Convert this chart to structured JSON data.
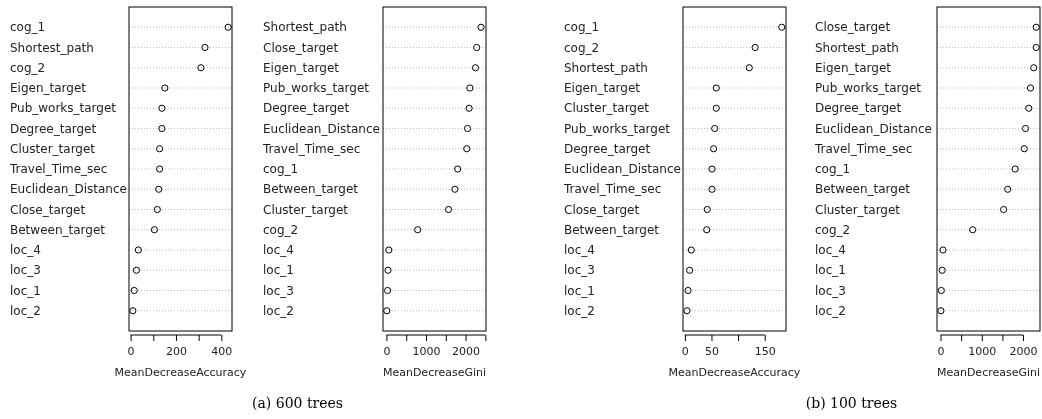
{
  "chart_data": [
    {
      "type": "scatter",
      "orientation": "horizontal",
      "marker": "circle",
      "grid": "y",
      "xlabel": "MeanDecreaseAccuracy",
      "annotations": [
        "(a) 600 trees"
      ],
      "categories": [
        "cog_1",
        "Shortest_path",
        "cog_2",
        "Eigen_target",
        "Pub_works_target",
        "Degree_target",
        "Cluster_target",
        "Travel_Time_sec",
        "Euclidean_Distance",
        "Close_target",
        "Between_target",
        "loc_4",
        "loc_3",
        "loc_1",
        "loc_2"
      ],
      "values": [
        430,
        328,
        310,
        151,
        138,
        138,
        128,
        128,
        124,
        118,
        105,
        34,
        26,
        16,
        10
      ],
      "color": "#000000",
      "xlim": [
        -7,
        447
      ],
      "xticks": [
        0,
        {
          "value": 100,
          "label": null
        },
        200,
        {
          "value": 300,
          "label": null
        },
        400
      ]
    },
    {
      "type": "scatter",
      "orientation": "horizontal",
      "marker": "circle",
      "grid": "y",
      "xlabel": "MeanDecreaseGini",
      "categories": [
        "Shortest_path",
        "Close_target",
        "Eigen_target",
        "Pub_works_target",
        "Degree_target",
        "Euclidean_Distance",
        "Travel_Time_sec",
        "cog_1",
        "Between_target",
        "Cluster_target",
        "cog_2",
        "loc_4",
        "loc_1",
        "loc_3",
        "loc_2"
      ],
      "values": [
        2390,
        2280,
        2250,
        2110,
        2090,
        2050,
        2030,
        1800,
        1730,
        1570,
        790,
        60,
        40,
        30,
        10
      ],
      "color": "#000000",
      "xlim": [
        -86,
        2516
      ],
      "xticks": [
        0,
        {
          "value": 500,
          "label": null
        },
        1000,
        {
          "value": 1500,
          "label": null
        },
        2000,
        {
          "value": 2500,
          "label": null
        }
      ]
    },
    {
      "type": "scatter",
      "orientation": "horizontal",
      "marker": "circle",
      "grid": "y",
      "xlabel": "MeanDecreaseAccuracy",
      "annotations": [
        "(b) 100 trees"
      ],
      "categories": [
        "cog_1",
        "cog_2",
        "Shortest_path",
        "Eigen_target",
        "Cluster_target",
        "Pub_works_target",
        "Degree_target",
        "Euclidean_Distance",
        "Travel_Time_sec",
        "Close_target",
        "Between_target",
        "loc_4",
        "loc_3",
        "loc_1",
        "loc_2"
      ],
      "values": [
        182,
        132,
        121,
        59,
        59,
        56,
        54,
        51,
        51,
        42,
        41,
        12,
        9,
        6,
        4
      ],
      "color": "#000000",
      "xlim": [
        -3.5,
        190
      ],
      "xticks": [
        0,
        50,
        {
          "value": 100,
          "label": null
        },
        150
      ]
    },
    {
      "type": "scatter",
      "orientation": "horizontal",
      "marker": "circle",
      "grid": "y",
      "xlabel": "MeanDecreaseGini",
      "categories": [
        "Close_target",
        "Shortest_path",
        "Eigen_target",
        "Pub_works_target",
        "Degree_target",
        "Euclidean_Distance",
        "Travel_Time_sec",
        "cog_1",
        "Between_target",
        "Cluster_target",
        "cog_2",
        "loc_4",
        "loc_1",
        "loc_3",
        "loc_2"
      ],
      "values": [
        2320,
        2320,
        2260,
        2180,
        2140,
        2060,
        2030,
        1810,
        1630,
        1530,
        780,
        60,
        40,
        20,
        10
      ],
      "color": "#000000",
      "xlim": [
        -85,
        2412
      ],
      "xticks": [
        0,
        {
          "value": 500,
          "label": null
        },
        1000,
        {
          "value": 1500,
          "label": null
        },
        2000
      ]
    }
  ]
}
